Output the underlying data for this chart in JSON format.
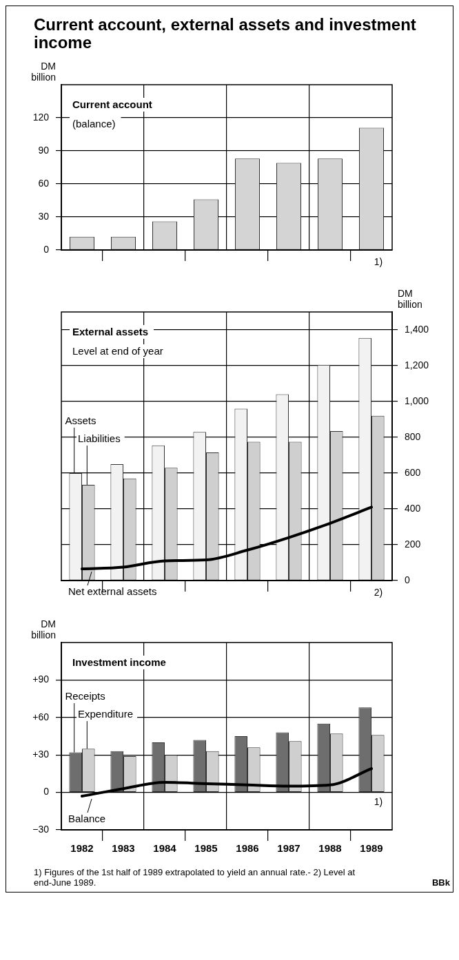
{
  "chart_data": [
    {
      "type": "bar",
      "title": "Current account, external assets and investment income",
      "subtitle": "Current account",
      "ylabel": "DM billion",
      "categories": [
        "1982",
        "1983",
        "1984",
        "1985",
        "1986",
        "1987",
        "1988",
        "1989"
      ],
      "series": [
        {
          "color": "#d4d4d4",
          "values": [
            12,
            12,
            26,
            46,
            83,
            79,
            83,
            111
          ]
        }
      ],
      "ylim": [
        0,
        150
      ],
      "yticks": [
        0,
        30,
        60,
        90,
        120
      ],
      "grid": true,
      "tick_labels": "y",
      "annotations": [
        "(balance)",
        "1)"
      ]
    },
    {
      "type": "bar",
      "title": "External assets",
      "subtitle": "Level at end of year",
      "y2label": "DM billion",
      "categories": [
        "1982",
        "1983",
        "1984",
        "1985",
        "1986",
        "1987",
        "1988",
        "1989"
      ],
      "series": [
        {
          "name": "Assets",
          "color": "#f2f2f2",
          "axis": "y2",
          "values": [
            600,
            650,
            755,
            830,
            960,
            1040,
            1205,
            1355
          ]
        },
        {
          "name": "Liabilities",
          "color": "#cfcfcf",
          "axis": "y2",
          "values": [
            535,
            570,
            630,
            715,
            775,
            775,
            835,
            920
          ]
        },
        {
          "name": "Net external assets",
          "type": "line",
          "color": "#000000",
          "axis": "y2",
          "values": [
            65,
            75,
            110,
            115,
            170,
            240,
            320,
            410
          ]
        }
      ],
      "y2lim": [
        0,
        1500
      ],
      "y2ticks": [
        0,
        200,
        400,
        600,
        800,
        {
          "value": 1000,
          "label": "1,000"
        },
        {
          "value": 1200,
          "label": "1,200"
        },
        {
          "value": 1400,
          "label": "1,400"
        }
      ],
      "grid": true,
      "legend": "left",
      "tick_labels": "y",
      "annotations": [
        "2)"
      ]
    },
    {
      "type": "bar",
      "title": "Investment income",
      "ylabel": "DM billion",
      "categories": [
        "1982",
        "1983",
        "1984",
        "1985",
        "1986",
        "1987",
        "1988",
        "1989"
      ],
      "series": [
        {
          "name": "Receipts",
          "color": "#6e6e6e",
          "values": [
            32,
            33,
            40,
            42,
            45,
            48,
            55,
            68
          ]
        },
        {
          "name": "Expenditure",
          "color": "#cfcfcf",
          "values": [
            35,
            29,
            30,
            33,
            36,
            41,
            47,
            46
          ]
        },
        {
          "name": "Balance",
          "type": "line",
          "color": "#000000",
          "values": [
            -3,
            3,
            8,
            7,
            6,
            5,
            6,
            19
          ]
        }
      ],
      "ylim": [
        -30,
        120
      ],
      "yticks": [
        {
          "value": -30,
          "label": "−30"
        },
        0,
        {
          "value": 30,
          "label": "+30"
        },
        {
          "value": 60,
          "label": "+60"
        },
        {
          "value": 90,
          "label": "+90"
        }
      ],
      "grid": true,
      "legend": "left",
      "annotations": [
        "1)",
        "1) Figures of the 1st half of 1989 extrapolated to yield an annual rate.- 2) Level at end-June 1989.",
        "BBk"
      ]
    }
  ]
}
